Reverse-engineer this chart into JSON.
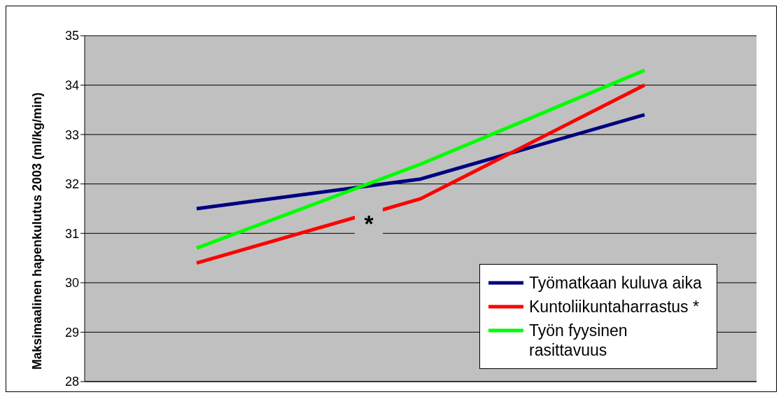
{
  "chart_data": {
    "type": "line",
    "ylabel": "Maksimaalinen hapenkulutus 2003 (ml/kg/min)",
    "categories": [
      null,
      null,
      null
    ],
    "series": [
      {
        "name": "Työmatkaan kuluva aika",
        "color": "#000080",
        "values": [
          31.5,
          32.1,
          33.4
        ]
      },
      {
        "name": "Kuntoliikuntaharrastus *",
        "color": "#ff0000",
        "values": [
          30.4,
          31.7,
          34.0
        ]
      },
      {
        "name": "Työn fyysinen rasittavuus",
        "color": "#00ff00",
        "values": [
          30.7,
          32.4,
          34.3
        ]
      }
    ],
    "ylim": [
      28,
      35
    ],
    "yticks": [
      28,
      29,
      30,
      31,
      32,
      33,
      34,
      35
    ],
    "grid": "y",
    "legend": "bottom right",
    "marker": "none",
    "line_style": "solid",
    "tick_labels": "y",
    "annotations": [
      "*"
    ]
  }
}
